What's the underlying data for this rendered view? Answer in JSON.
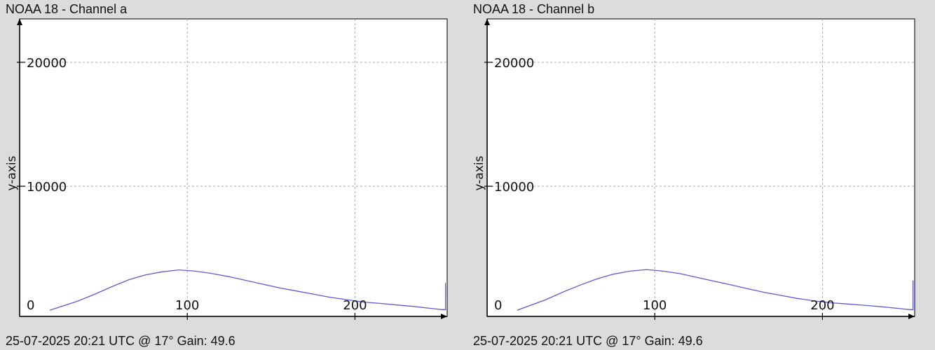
{
  "chart_data": [
    {
      "type": "line",
      "title": "NOAA 18 - Channel a",
      "footer": "25-07-2025 20:21 UTC @ 17° Gain: 49.6",
      "xlabel": "",
      "ylabel": "y-axis",
      "xlim": [
        0,
        255
      ],
      "ylim": [
        -500,
        23500
      ],
      "grid": true,
      "x_ticks": [
        0,
        100,
        200
      ],
      "y_ticks": [
        0,
        10000,
        20000
      ],
      "color": "#5b5bd6",
      "series": [
        {
          "x": [
            18,
            25,
            35,
            45,
            55,
            65,
            75,
            85,
            95,
            100,
            105,
            115,
            125,
            135,
            145,
            155,
            165,
            175,
            185,
            195,
            205,
            215,
            225,
            235,
            245,
            252,
            253,
            254,
            254
          ],
          "values": [
            0,
            300,
            750,
            1300,
            1900,
            2450,
            2850,
            3100,
            3250,
            3200,
            3150,
            2950,
            2700,
            2400,
            2100,
            1800,
            1550,
            1300,
            1050,
            850,
            650,
            550,
            420,
            300,
            150,
            50,
            50,
            50,
            2200
          ]
        }
      ]
    },
    {
      "type": "line",
      "title": "NOAA 18 - Channel b",
      "footer": "25-07-2025 20:21 UTC @ 17° Gain: 49.6",
      "xlabel": "",
      "ylabel": "y-axis",
      "xlim": [
        0,
        255
      ],
      "ylim": [
        -500,
        23500
      ],
      "grid": true,
      "x_ticks": [
        0,
        100,
        200
      ],
      "y_ticks": [
        0,
        10000,
        20000
      ],
      "color": "#5b5bd6",
      "series": [
        {
          "x": [
            18,
            25,
            35,
            45,
            55,
            65,
            75,
            85,
            95,
            100,
            105,
            115,
            125,
            135,
            145,
            155,
            165,
            175,
            185,
            195,
            205,
            215,
            225,
            235,
            245,
            252,
            253,
            254,
            254
          ],
          "values": [
            0,
            350,
            850,
            1450,
            2000,
            2500,
            2900,
            3150,
            3280,
            3220,
            3150,
            2950,
            2650,
            2350,
            2050,
            1750,
            1450,
            1200,
            950,
            750,
            600,
            500,
            400,
            280,
            150,
            50,
            50,
            50,
            2400
          ]
        }
      ]
    }
  ]
}
